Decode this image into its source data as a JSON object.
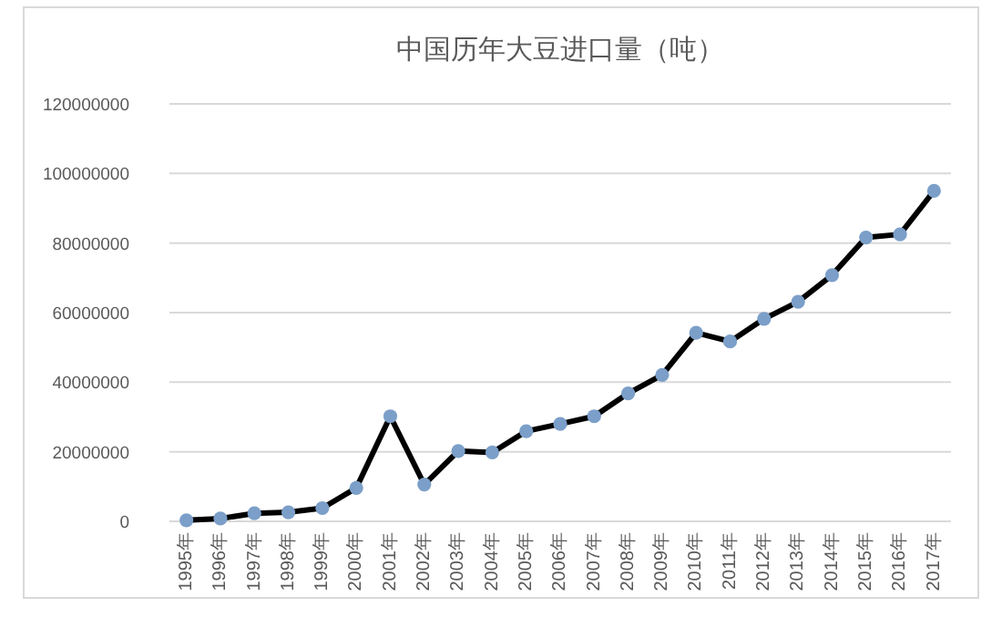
{
  "chart_data": {
    "type": "line",
    "title": "中国历年大豆进口量（吨）",
    "categories": [
      "1995年",
      "1996年",
      "1997年",
      "1998年",
      "1999年",
      "2000年",
      "2001年",
      "2002年",
      "2003年",
      "2004年",
      "2005年",
      "2006年",
      "2007年",
      "2008年",
      "2009年",
      "2010年",
      "2011年",
      "2012年",
      "2013年",
      "2014年",
      "2015年",
      "2016年",
      "2017年"
    ],
    "series": [
      {
        "color": "#000000",
        "values": [
          300000,
          800000,
          2300000,
          2600000,
          3800000,
          9600000,
          30200000,
          10600000,
          20200000,
          19800000,
          25900000,
          28000000,
          30200000,
          36800000,
          42100000,
          54200000,
          51700000,
          58200000,
          63100000,
          70800000,
          81600000,
          82500000,
          95000000
        ]
      }
    ],
    "marker": "circle",
    "ylim": [
      0,
      120000000
    ],
    "yticks": [
      0,
      20000000,
      40000000,
      60000000,
      80000000,
      100000000,
      120000000
    ],
    "grid": "y"
  }
}
